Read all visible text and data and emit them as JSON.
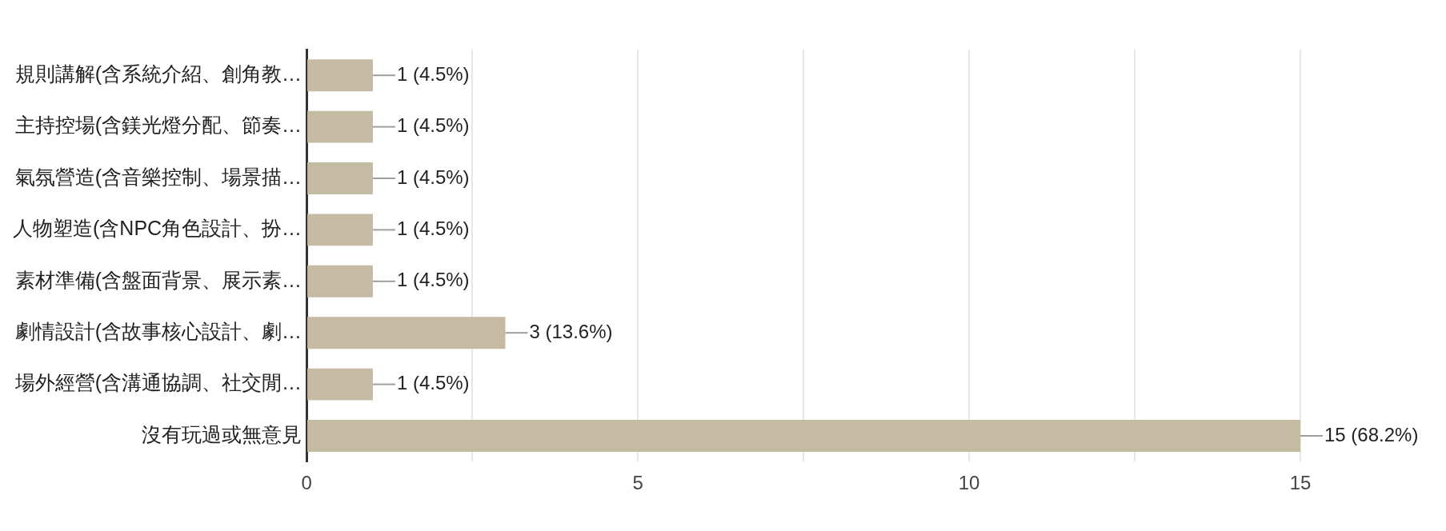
{
  "chart_data": {
    "type": "bar",
    "orientation": "horizontal",
    "categories": [
      "規則講解(含系統介紹、創角教…",
      "主持控場(含鎂光燈分配、節奏…",
      "氣氛營造(含音樂控制、場景描…",
      "人物塑造(含NPC角色設計、扮…",
      "素材準備(含盤面背景、展示素…",
      "劇情設計(含故事核心設計、劇…",
      "場外經營(含溝通協調、社交閒…",
      "沒有玩過或無意見"
    ],
    "values": [
      1,
      1,
      1,
      1,
      1,
      3,
      1,
      15
    ],
    "value_labels": [
      "1 (4.5%)",
      "1 (4.5%)",
      "1 (4.5%)",
      "1 (4.5%)",
      "1 (4.5%)",
      "3 (13.6%)",
      "1 (4.5%)",
      "15 (68.2%)"
    ],
    "color": "#c5bba3",
    "xlim": [
      0,
      15
    ],
    "xticks": [
      0,
      {
        "value": 2.5,
        "label": null
      },
      5,
      {
        "value": 7.5,
        "label": null
      },
      10,
      {
        "value": 12.5,
        "label": null
      },
      15
    ],
    "grid": "x",
    "legend": false
  }
}
